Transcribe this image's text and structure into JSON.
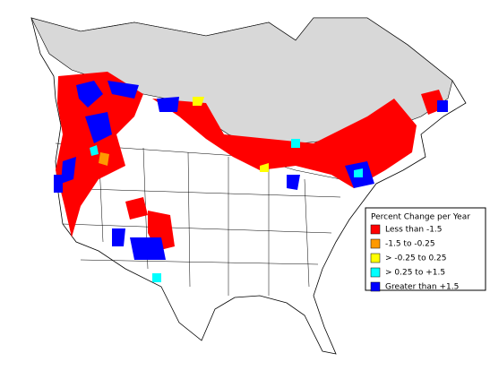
{
  "legend": {
    "title": "Percent Change per Year",
    "items": [
      {
        "label": "Less than -1.5",
        "color": "#ff0000"
      },
      {
        "label": "-1.5 to -0.25",
        "color": "#ff9900"
      },
      {
        "label": "> -0.25 to 0.25",
        "color": "#ffff00"
      },
      {
        "label": "> 0.25 to +1.5",
        "color": "#00ffff"
      },
      {
        "label": "Greater than +1.5",
        "color": "#0000ff"
      }
    ]
  }
}
